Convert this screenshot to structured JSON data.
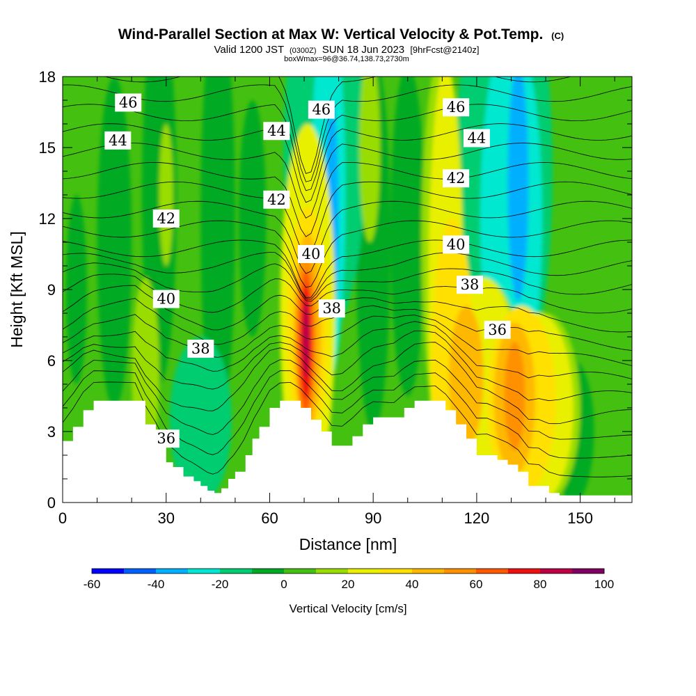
{
  "chart_data": {
    "type": "heatmap",
    "title": "Wind-Parallel Section at Max W: Vertical Velocity & Pot.Temp.",
    "title_suffix": "(C)",
    "subtitle_parts": [
      "Valid 1200 JST",
      "(0300Z)",
      "SUN 18 Jun 2023",
      "[9hrFcst@2140z]"
    ],
    "subtitle2": "boxWmax=96@36.74,138.73,2730m",
    "xlabel": "Distance [nm]",
    "ylabel": "Height [Kft MSL]",
    "xlim": [
      0,
      165
    ],
    "ylim": [
      0,
      18
    ],
    "x_ticks": [
      0,
      30,
      60,
      90,
      120,
      150
    ],
    "y_ticks": [
      0,
      3,
      6,
      9,
      12,
      15,
      18
    ],
    "colorbar": {
      "label": "Vertical Velocity [cm/s]",
      "levels": [
        -60,
        -50,
        -40,
        -30,
        -20,
        -10,
        0,
        10,
        20,
        30,
        40,
        50,
        60,
        70,
        80,
        90,
        100
      ],
      "tick_labels": [
        -60,
        -40,
        -20,
        0,
        20,
        40,
        60,
        80,
        100
      ],
      "colors": [
        "#0000ff",
        "#0060ff",
        "#00b0ff",
        "#00e8d0",
        "#00cc70",
        "#00aa22",
        "#44c010",
        "#99dd00",
        "#e8f000",
        "#ffe000",
        "#ffb800",
        "#ff9000",
        "#ff5800",
        "#ee1010",
        "#bb0044",
        "#800060"
      ]
    },
    "terrain": {
      "x": [
        0,
        3,
        6,
        9,
        12,
        15,
        18,
        21,
        24,
        27,
        30,
        32,
        35,
        38,
        40,
        42,
        44,
        46,
        48,
        50,
        53,
        55,
        57,
        60,
        63,
        66,
        69,
        72,
        75,
        78,
        81,
        84,
        87,
        90,
        93,
        96,
        99,
        102,
        105,
        108,
        111,
        114,
        117,
        120,
        123,
        126,
        129,
        132,
        135,
        138,
        141,
        144,
        147,
        150,
        153,
        156,
        160,
        165
      ],
      "height": [
        2.6,
        3.2,
        3.9,
        4.3,
        4.3,
        4.3,
        4.3,
        4.3,
        3.3,
        2.6,
        1.7,
        1.5,
        1.1,
        0.9,
        0.7,
        0.5,
        0.4,
        0.6,
        1.0,
        1.3,
        2.0,
        2.7,
        3.2,
        4.0,
        4.3,
        4.3,
        4.0,
        3.5,
        3.0,
        2.4,
        2.4,
        2.8,
        3.3,
        3.6,
        3.6,
        3.6,
        4.0,
        4.3,
        4.3,
        4.3,
        3.9,
        3.3,
        2.7,
        2.0,
        2.0,
        1.8,
        1.6,
        1.3,
        0.7,
        0.7,
        0.4,
        0.3,
        0.3,
        0.3,
        0.3,
        0.3,
        0.3,
        0.3
      ]
    },
    "vertical_velocity_cells": [
      {
        "x": 4,
        "y": 9.0,
        "w": 3,
        "h": 4.0,
        "value": -5
      },
      {
        "x": 15,
        "y": 11.0,
        "w": 5,
        "h": 7.0,
        "value": -5
      },
      {
        "x": 28,
        "y": 13.0,
        "w": 5,
        "h": 8.0,
        "value": -5
      },
      {
        "x": 45,
        "y": 12.0,
        "w": 5,
        "h": 9.0,
        "value": -5
      },
      {
        "x": 55,
        "y": 12.0,
        "w": 4,
        "h": 5.0,
        "value": -5
      },
      {
        "x": 90,
        "y": 11.0,
        "w": 5,
        "h": 8.0,
        "value": -5
      },
      {
        "x": 100,
        "y": 11.5,
        "w": 5,
        "h": 7.0,
        "value": -5
      },
      {
        "x": 148,
        "y": 3.0,
        "w": 6,
        "h": 3.0,
        "value": -5
      },
      {
        "x": 76,
        "y": 15.0,
        "w": 12,
        "h": 8.0,
        "value": -15
      },
      {
        "x": 128,
        "y": 14.0,
        "w": 14,
        "h": 10.0,
        "value": -15
      },
      {
        "x": 40,
        "y": 3.5,
        "w": 9,
        "h": 3.5,
        "value": -15
      },
      {
        "x": 77,
        "y": 13.0,
        "w": 5,
        "h": 8.0,
        "value": -25
      },
      {
        "x": 130,
        "y": 12.0,
        "w": 9,
        "h": 8.0,
        "value": -25
      },
      {
        "x": 78,
        "y": 12.0,
        "w": 2,
        "h": 5.0,
        "value": -35
      },
      {
        "x": 132,
        "y": 13.5,
        "w": 3,
        "h": 5.0,
        "value": -35
      },
      {
        "x": 24,
        "y": 5.5,
        "w": 4,
        "h": 4.0,
        "value": 15
      },
      {
        "x": 30,
        "y": 13.0,
        "w": 2,
        "h": 3.0,
        "value": 15
      },
      {
        "x": 89,
        "y": 15.0,
        "w": 3,
        "h": 4.0,
        "value": 15
      },
      {
        "x": 110,
        "y": 11.0,
        "w": 6,
        "h": 8.0,
        "value": 15
      },
      {
        "x": 122,
        "y": 4.5,
        "w": 12,
        "h": 5.0,
        "value": 15
      },
      {
        "x": 140,
        "y": 4.0,
        "w": 10,
        "h": 4.0,
        "value": 15
      },
      {
        "x": 71,
        "y": 8.0,
        "w": 8,
        "h": 8.0,
        "value": 25
      },
      {
        "x": 111,
        "y": 8.5,
        "w": 5,
        "h": 10.0,
        "value": 25
      },
      {
        "x": 122,
        "y": 5.0,
        "w": 10,
        "h": 4.5,
        "value": 25
      },
      {
        "x": 138,
        "y": 4.0,
        "w": 10,
        "h": 4.0,
        "value": 25
      },
      {
        "x": 71,
        "y": 7.5,
        "w": 6,
        "h": 5.0,
        "value": 35
      },
      {
        "x": 113,
        "y": 6.0,
        "w": 6,
        "h": 6.0,
        "value": 35
      },
      {
        "x": 133,
        "y": 4.3,
        "w": 10,
        "h": 4.0,
        "value": 35
      },
      {
        "x": 71,
        "y": 7.2,
        "w": 4,
        "h": 4.2,
        "value": 45
      },
      {
        "x": 117,
        "y": 5.3,
        "w": 5,
        "h": 3.0,
        "value": 45
      },
      {
        "x": 131,
        "y": 4.4,
        "w": 6,
        "h": 3.2,
        "value": 45
      },
      {
        "x": 70.5,
        "y": 7.0,
        "w": 3,
        "h": 3.6,
        "value": 55
      },
      {
        "x": 131,
        "y": 4.5,
        "w": 3,
        "h": 2.3,
        "value": 55
      },
      {
        "x": 70.5,
        "y": 6.8,
        "w": 2.2,
        "h": 3.0,
        "value": 65
      },
      {
        "x": 70.5,
        "y": 6.8,
        "w": 1.6,
        "h": 2.4,
        "value": 75
      },
      {
        "x": 70.5,
        "y": 6.9,
        "w": 1.0,
        "h": 1.6,
        "value": 85
      }
    ],
    "theta_labels": [
      {
        "text": "46",
        "x": 19,
        "y": 16.9
      },
      {
        "text": "44",
        "x": 16,
        "y": 15.3
      },
      {
        "text": "46",
        "x": 75,
        "y": 16.6
      },
      {
        "text": "46",
        "x": 114,
        "y": 16.7
      },
      {
        "text": "44",
        "x": 62,
        "y": 15.7
      },
      {
        "text": "44",
        "x": 120,
        "y": 15.4
      },
      {
        "text": "42",
        "x": 30,
        "y": 12.0
      },
      {
        "text": "42",
        "x": 62,
        "y": 12.8
      },
      {
        "text": "42",
        "x": 114,
        "y": 13.7
      },
      {
        "text": "40",
        "x": 30,
        "y": 8.6
      },
      {
        "text": "40",
        "x": 72,
        "y": 10.5
      },
      {
        "text": "40",
        "x": 114,
        "y": 10.9
      },
      {
        "text": "38",
        "x": 40,
        "y": 6.5
      },
      {
        "text": "38",
        "x": 78,
        "y": 8.2
      },
      {
        "text": "38",
        "x": 118,
        "y": 9.2
      },
      {
        "text": "36",
        "x": 30,
        "y": 2.7
      },
      {
        "text": "36",
        "x": 126,
        "y": 7.3
      }
    ]
  }
}
